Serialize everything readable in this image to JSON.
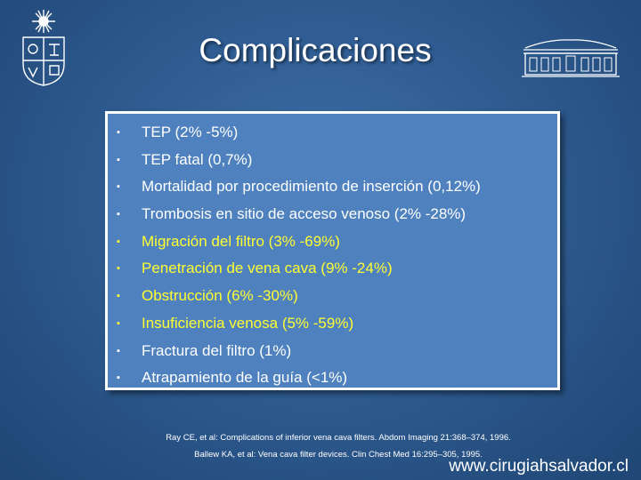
{
  "slide": {
    "title": "Complicaciones",
    "items": [
      {
        "text": "TEP (2% -5%)",
        "color": "#ffffff"
      },
      {
        "text": "TEP fatal (0,7%)",
        "color": "#ffffff"
      },
      {
        "text": "Mortalidad por procedimiento de inserción (0,12%)",
        "color": "#ffffff"
      },
      {
        "text": "Trombosis en sitio de acceso venoso (2% -28%)",
        "color": "#ffffff"
      },
      {
        "text": "Migración del filtro (3% -69%)",
        "color": "#ffff33"
      },
      {
        "text": "Penetración de vena cava (9% -24%)",
        "color": "#ffff33"
      },
      {
        "text": "Obstrucción (6% -30%)",
        "color": "#ffff33"
      },
      {
        "text": "Insuficiencia venosa (5% -59%)",
        "color": "#ffff33"
      },
      {
        "text": "Fractura del filtro (1%)",
        "color": "#ffffff"
      },
      {
        "text": "Atrapamiento de la guía (<1%)",
        "color": "#ffffff"
      }
    ],
    "bullet": "▪",
    "references": [
      "Ray CE, et al: Complications of inferior vena cava filters. Abdom Imaging 21:368–374, 1996.",
      "Ballew KA, et al: Vena cava filter devices. Clin Chest Med 16:295–305, 1995."
    ],
    "website": "www.cirugiahsalvador.cl"
  },
  "icons": {
    "left_logo": "university-crest-icon",
    "right_logo": "hospital-building-icon"
  },
  "colors": {
    "background": "#2f5c92",
    "box": "#4e81bd",
    "highlight": "#ffff33"
  }
}
